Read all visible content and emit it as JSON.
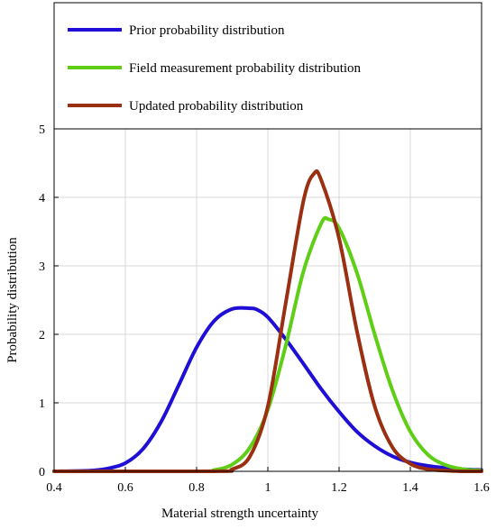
{
  "chart_data": {
    "type": "line",
    "title": "",
    "xlabel": "Material strength uncertainty",
    "ylabel": "Probability distribution",
    "xlim": [
      0.4,
      1.6
    ],
    "ylim": [
      0,
      5
    ],
    "xticks": [
      "0.4",
      "0.6",
      "0.8",
      "1",
      "1.2",
      "1.4",
      "1.6"
    ],
    "yticks": [
      "0",
      "1",
      "2",
      "3",
      "4",
      "5"
    ],
    "grid": true,
    "legend_position": "top",
    "series": [
      {
        "name": "Prior probability distribution",
        "color": "#1f0fd6",
        "x": [
          0.4,
          0.5,
          0.55,
          0.6,
          0.65,
          0.7,
          0.75,
          0.8,
          0.85,
          0.9,
          0.95,
          0.97,
          1.0,
          1.05,
          1.1,
          1.15,
          1.2,
          1.25,
          1.3,
          1.35,
          1.4,
          1.45,
          1.5,
          1.55,
          1.6
        ],
        "y": [
          0.0,
          0.01,
          0.04,
          0.12,
          0.33,
          0.72,
          1.26,
          1.81,
          2.2,
          2.37,
          2.38,
          2.36,
          2.25,
          1.93,
          1.57,
          1.2,
          0.87,
          0.58,
          0.37,
          0.22,
          0.13,
          0.08,
          0.05,
          0.03,
          0.02
        ]
      },
      {
        "name": "Field measurement probability distribution",
        "color": "#5fce16",
        "x": [
          0.4,
          0.8,
          0.85,
          0.9,
          0.95,
          1.0,
          1.05,
          1.1,
          1.15,
          1.17,
          1.2,
          1.25,
          1.3,
          1.35,
          1.4,
          1.45,
          1.5,
          1.55,
          1.6
        ],
        "y": [
          0.0,
          0.0,
          0.02,
          0.1,
          0.35,
          0.9,
          1.83,
          2.92,
          3.62,
          3.68,
          3.55,
          2.9,
          2.0,
          1.18,
          0.58,
          0.24,
          0.09,
          0.03,
          0.01
        ]
      },
      {
        "name": "Updated probability distribution",
        "color": "#9b2f12",
        "x": [
          0.4,
          0.85,
          0.9,
          0.95,
          1.0,
          1.05,
          1.1,
          1.13,
          1.15,
          1.2,
          1.25,
          1.3,
          1.35,
          1.4,
          1.45,
          1.5,
          1.55,
          1.6
        ],
        "y": [
          0.0,
          0.0,
          0.03,
          0.22,
          0.95,
          2.45,
          3.95,
          4.35,
          4.25,
          3.4,
          2.05,
          0.95,
          0.35,
          0.11,
          0.03,
          0.01,
          0.0,
          0.0
        ]
      }
    ]
  }
}
